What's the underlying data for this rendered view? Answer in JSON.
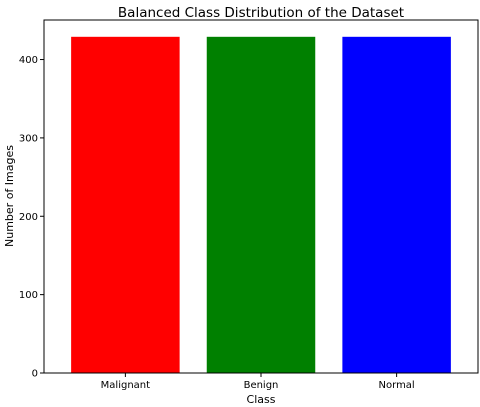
{
  "chart_data": {
    "type": "bar",
    "title": "Balanced Class Distribution of the Dataset",
    "xlabel": "Class",
    "ylabel": "Number of Images",
    "categories": [
      "Malignant",
      "Benign",
      "Normal"
    ],
    "values": [
      429,
      429,
      429
    ],
    "colors": [
      "#ff0000",
      "#008000",
      "#0000ff"
    ],
    "ylim": [
      0,
      450.45
    ],
    "yticks": [
      0,
      100,
      200,
      300,
      400
    ],
    "grid": false,
    "legend": "none"
  }
}
